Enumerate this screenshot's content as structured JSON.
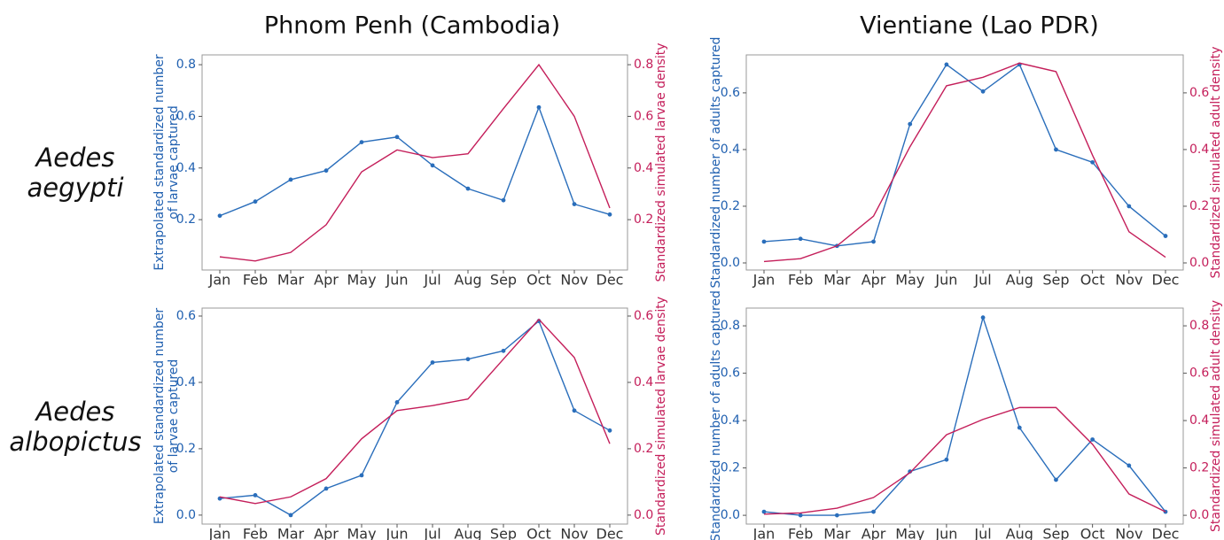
{
  "column_titles": [
    "Phnom Penh (Cambodia)",
    "Vientiane (Lao PDR)"
  ],
  "row_labels": [
    [
      "Aedes",
      "aegypti"
    ],
    [
      "Aedes",
      "albopictus"
    ]
  ],
  "chart_data": [
    {
      "type": "line",
      "ylabel": [
        "Extrapolated standardized number",
        "of larvae captured"
      ],
      "y2label": "Standardized simulated larvae density",
      "categories": [
        "Jan",
        "Feb",
        "Mar",
        "Apr",
        "May",
        "Jun",
        "Jul",
        "Aug",
        "Sep",
        "Oct",
        "Nov",
        "Dec"
      ],
      "series": [
        {
          "color": "#2a6ebb",
          "markers": true,
          "values": [
            0.215,
            0.27,
            0.355,
            0.39,
            0.5,
            0.52,
            0.41,
            0.32,
            0.275,
            0.635,
            0.26,
            0.22
          ]
        },
        {
          "color": "#c41e5a",
          "axis": "y2",
          "values": [
            0.056,
            0.04,
            0.073,
            0.18,
            0.385,
            0.47,
            0.44,
            0.455,
            0.63,
            0.8,
            0.6,
            0.245
          ]
        }
      ],
      "ylim": [
        0.005,
        0.838
      ],
      "yticks": [
        0.2,
        0.4,
        0.6,
        0.8
      ],
      "y2lim": [
        0.005,
        0.838
      ],
      "y2ticks": [
        0.2,
        0.4,
        0.6,
        0.8
      ]
    },
    {
      "type": "line",
      "ylabel": [
        "Standardized number of adults captured"
      ],
      "y2label": "Standardized simulated adult density",
      "categories": [
        "Jan",
        "Feb",
        "Mar",
        "Apr",
        "May",
        "Jun",
        "Jul",
        "Aug",
        "Sep",
        "Oct",
        "Nov",
        "Dec"
      ],
      "series": [
        {
          "color": "#2a6ebb",
          "markers": true,
          "values": [
            0.075,
            0.085,
            0.06,
            0.075,
            0.49,
            0.7,
            0.605,
            0.7,
            0.4,
            0.355,
            0.2,
            0.095
          ]
        },
        {
          "color": "#c41e5a",
          "axis": "y2",
          "values": [
            0.005,
            0.015,
            0.06,
            0.165,
            0.41,
            0.625,
            0.655,
            0.705,
            0.675,
            0.38,
            0.11,
            0.02
          ]
        }
      ],
      "ylim": [
        -0.025,
        0.734
      ],
      "yticks": [
        {
          "value": 0,
          "label": "0.0"
        },
        0.2,
        0.4,
        0.6
      ],
      "y2lim": [
        -0.025,
        0.734
      ],
      "y2ticks": [
        {
          "value": 0,
          "label": "0.0"
        },
        0.2,
        0.4,
        0.6
      ]
    },
    {
      "type": "line",
      "ylabel": [
        "Extrapolated standardized number",
        "of larvae captured"
      ],
      "y2label": "Standardized simulated larvae density",
      "categories": [
        "Jan",
        "Feb",
        "Mar",
        "Apr",
        "May",
        "Jun",
        "Jul",
        "Aug",
        "Sep",
        "Oct",
        "Nov",
        "Dec"
      ],
      "series": [
        {
          "color": "#2a6ebb",
          "markers": true,
          "values": [
            0.05,
            0.06,
            0.0,
            0.08,
            0.12,
            0.34,
            0.46,
            0.47,
            0.495,
            0.585,
            0.315,
            0.255
          ]
        },
        {
          "color": "#c41e5a",
          "axis": "y2",
          "values": [
            0.055,
            0.035,
            0.055,
            0.11,
            0.23,
            0.315,
            0.33,
            0.35,
            0.47,
            0.59,
            0.475,
            0.215
          ]
        }
      ],
      "ylim": [
        -0.027,
        0.624
      ],
      "yticks": [
        {
          "value": 0,
          "label": "0.0"
        },
        0.2,
        0.4,
        0.6
      ],
      "y2lim": [
        -0.027,
        0.624
      ],
      "y2ticks": [
        {
          "value": 0,
          "label": "0.0"
        },
        0.2,
        0.4,
        0.6
      ]
    },
    {
      "type": "line",
      "ylabel": [
        "Standardized number of adults captured"
      ],
      "y2label": "Standardized simulated adult density",
      "categories": [
        "Jan",
        "Feb",
        "Mar",
        "Apr",
        "May",
        "Jun",
        "Jul",
        "Aug",
        "Sep",
        "Oct",
        "Nov",
        "Dec"
      ],
      "series": [
        {
          "color": "#2a6ebb",
          "markers": true,
          "values": [
            0.015,
            0.0,
            0.0,
            0.015,
            0.185,
            0.235,
            0.835,
            0.37,
            0.15,
            0.32,
            0.21,
            0.015
          ]
        },
        {
          "color": "#c41e5a",
          "axis": "y2",
          "values": [
            0.005,
            0.01,
            0.03,
            0.075,
            0.18,
            0.34,
            0.405,
            0.455,
            0.455,
            0.3,
            0.09,
            0.015
          ]
        }
      ],
      "ylim": [
        -0.037,
        0.875
      ],
      "yticks": [
        {
          "value": 0,
          "label": "0.0"
        },
        0.2,
        0.4,
        0.6,
        0.8
      ],
      "y2lim": [
        -0.037,
        0.875
      ],
      "y2ticks": [
        {
          "value": 0,
          "label": "0.0"
        },
        0.2,
        0.4,
        0.6,
        0.8
      ]
    }
  ]
}
